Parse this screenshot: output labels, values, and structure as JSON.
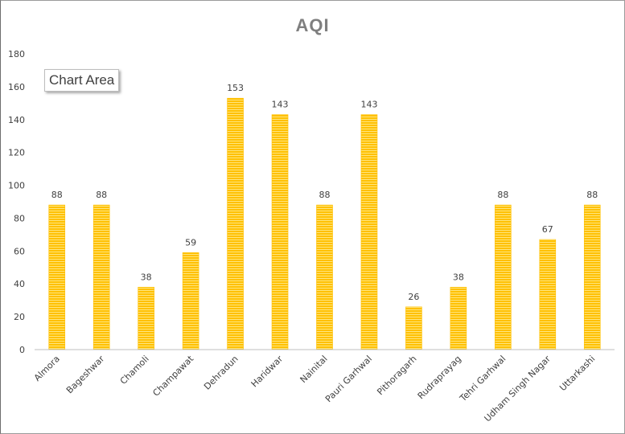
{
  "tooltip": "Chart Area",
  "colors": {
    "bar": "#FFC000",
    "bar_stripe": "#FFE680",
    "axis": "#bfbfbf",
    "title": "#7f7f7f",
    "text": "#404040"
  },
  "chart_data": {
    "type": "bar",
    "title": "AQI",
    "xlabel": "",
    "ylabel": "",
    "categories": [
      "Almora",
      "Bageshwar",
      "Chamoli",
      "Champawat",
      "Dehradun",
      "Haridwar",
      "Nainital",
      "Pauri Garhwal",
      "Pithoragarh",
      "Rudraprayag",
      "Tehri Garhwal",
      "Udham Singh Nagar",
      "Uttarkashi"
    ],
    "values": [
      88,
      88,
      38,
      59,
      153,
      143,
      88,
      143,
      26,
      38,
      88,
      67,
      88
    ],
    "ylim": [
      0,
      180
    ],
    "yticks": [
      0,
      20,
      40,
      60,
      80,
      100,
      120,
      140,
      160,
      180
    ],
    "grid": false,
    "legend": "none",
    "data_labels": true
  }
}
